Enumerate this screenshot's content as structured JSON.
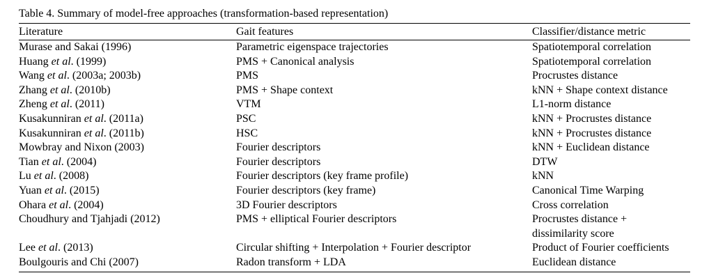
{
  "caption": "Table 4. Summary of model-free approaches (transformation-based representation)",
  "headers": [
    "Literature",
    "Gait features",
    "Classifier/distance metric"
  ],
  "rows": [
    {
      "lit_pre": "Murase and Sakai (1996)",
      "lit_it": "",
      "lit_post": "",
      "features": "Parametric eigenspace trajectories",
      "classifier": [
        "Spatiotemporal correlation"
      ]
    },
    {
      "lit_pre": "Huang ",
      "lit_it": "et al",
      "lit_post": ". (1999)",
      "features": "PMS + Canonical analysis",
      "classifier": [
        "Spatiotemporal correlation"
      ]
    },
    {
      "lit_pre": "Wang ",
      "lit_it": "et al",
      "lit_post": ". (2003a; 2003b)",
      "features": "PMS",
      "classifier": [
        "Procrustes distance"
      ]
    },
    {
      "lit_pre": "Zhang ",
      "lit_it": "et al",
      "lit_post": ". (2010b)",
      "features": "PMS + Shape context",
      "classifier": [
        "kNN + Shape context distance"
      ]
    },
    {
      "lit_pre": "Zheng ",
      "lit_it": "et al",
      "lit_post": ". (2011)",
      "features": "VTM",
      "classifier": [
        "L1-norm distance"
      ]
    },
    {
      "lit_pre": "Kusakunniran ",
      "lit_it": "et al",
      "lit_post": ". (2011a)",
      "features": "PSC",
      "classifier": [
        "kNN + Procrustes distance"
      ]
    },
    {
      "lit_pre": "Kusakunniran ",
      "lit_it": "et al",
      "lit_post": ". (2011b)",
      "features": "HSC",
      "classifier": [
        "kNN + Procrustes distance"
      ]
    },
    {
      "lit_pre": "Mowbray and Nixon (2003)",
      "lit_it": "",
      "lit_post": "",
      "features": "Fourier descriptors",
      "classifier": [
        "kNN + Euclidean distance"
      ]
    },
    {
      "lit_pre": "Tian ",
      "lit_it": "et al",
      "lit_post": ". (2004)",
      "features": "Fourier descriptors",
      "classifier": [
        "DTW"
      ]
    },
    {
      "lit_pre": "Lu ",
      "lit_it": "et al",
      "lit_post": ". (2008)",
      "features": "Fourier descriptors (key frame profile)",
      "classifier": [
        "kNN"
      ]
    },
    {
      "lit_pre": "Yuan ",
      "lit_it": "et al",
      "lit_post": ". (2015)",
      "features": "Fourier descriptors (key frame)",
      "classifier": [
        "Canonical Time Warping"
      ]
    },
    {
      "lit_pre": "Ohara ",
      "lit_it": "et al",
      "lit_post": ". (2004)",
      "features": "3D Fourier descriptors",
      "classifier": [
        "Cross correlation"
      ]
    },
    {
      "lit_pre": "Choudhury and Tjahjadi (2012)",
      "lit_it": "",
      "lit_post": "",
      "features": "PMS + elliptical Fourier descriptors",
      "classifier": [
        "Procrustes distance +",
        "dissimilarity score"
      ]
    },
    {
      "lit_pre": "Lee ",
      "lit_it": "et al",
      "lit_post": ". (2013)",
      "features": "Circular shifting + Interpolation + Fourier descriptor",
      "classifier": [
        "Product of Fourier coefficients"
      ]
    },
    {
      "lit_pre": "Boulgouris and Chi (2007)",
      "lit_it": "",
      "lit_post": "",
      "features": "Radon transform + LDA",
      "classifier": [
        "Euclidean distance"
      ]
    }
  ]
}
